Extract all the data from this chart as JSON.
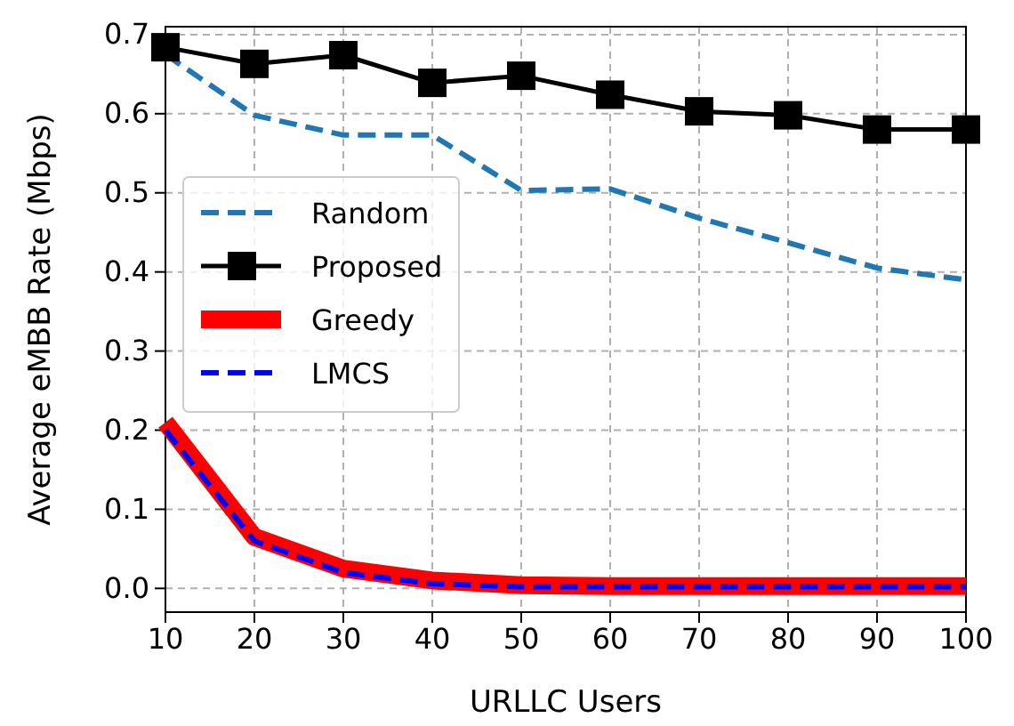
{
  "chart_data": {
    "type": "line",
    "xlabel": "URLLC Users",
    "ylabel": "Average eMBB Rate (Mbps)",
    "x": [
      10,
      20,
      30,
      40,
      50,
      60,
      70,
      80,
      90,
      100
    ],
    "series": [
      {
        "name": "Random",
        "color": "#1f77b4",
        "line_style": "dashed",
        "marker": "none",
        "values": [
          0.675,
          0.598,
          0.573,
          0.573,
          0.503,
          0.505,
          0.468,
          0.437,
          0.405,
          0.39
        ]
      },
      {
        "name": "Proposed",
        "color": "#000000",
        "line_style": "solid",
        "marker": "square",
        "values": [
          0.684,
          0.663,
          0.674,
          0.639,
          0.648,
          0.624,
          0.603,
          0.598,
          0.58,
          0.58
        ]
      },
      {
        "name": "Greedy",
        "color": "#ff0000",
        "line_style": "solid",
        "marker": "none",
        "values": [
          0.21,
          0.065,
          0.025,
          0.01,
          0.004,
          0.003,
          0.003,
          0.003,
          0.003,
          0.003
        ]
      },
      {
        "name": "LMCS",
        "color": "#0000ff",
        "line_style": "dashed",
        "marker": "none",
        "values": [
          0.2,
          0.06,
          0.02,
          0.006,
          0.002,
          0.002,
          0.002,
          0.002,
          0.002,
          0.002
        ]
      }
    ],
    "xlim": [
      10,
      100
    ],
    "ylim": [
      -0.03,
      0.71
    ],
    "xticks": [
      10,
      20,
      30,
      40,
      50,
      60,
      70,
      80,
      90,
      100
    ],
    "yticks": [
      {
        "value": 0,
        "label": "0.0"
      },
      {
        "value": 0.1,
        "label": "0.1"
      },
      {
        "value": 0.2,
        "label": "0.2"
      },
      {
        "value": 0.3,
        "label": "0.3"
      },
      {
        "value": 0.4,
        "label": "0.4"
      },
      {
        "value": 0.5,
        "label": "0.5"
      },
      {
        "value": 0.6,
        "label": "0.6"
      },
      {
        "value": 0.7,
        "label": "0.7"
      }
    ],
    "grid": true,
    "legend": "center left"
  }
}
